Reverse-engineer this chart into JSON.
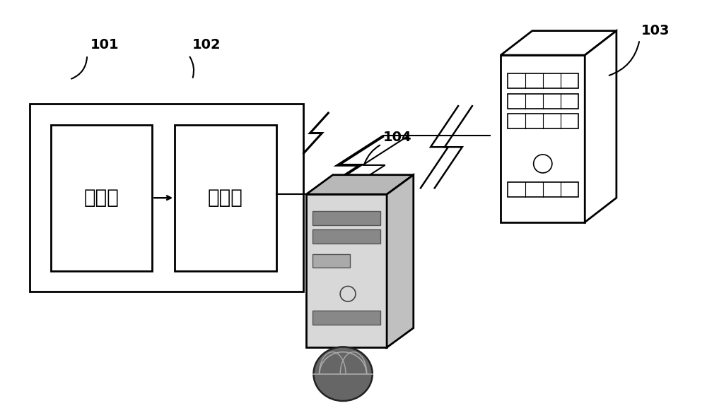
{
  "bg_color": "#ffffff",
  "label_101": "101",
  "label_102": "102",
  "label_103": "103",
  "label_104": "104",
  "text_client": "客户端",
  "text_kernel": "内核层",
  "line_color": "#000000",
  "font_size_label": 14,
  "font_size_chinese": 20
}
